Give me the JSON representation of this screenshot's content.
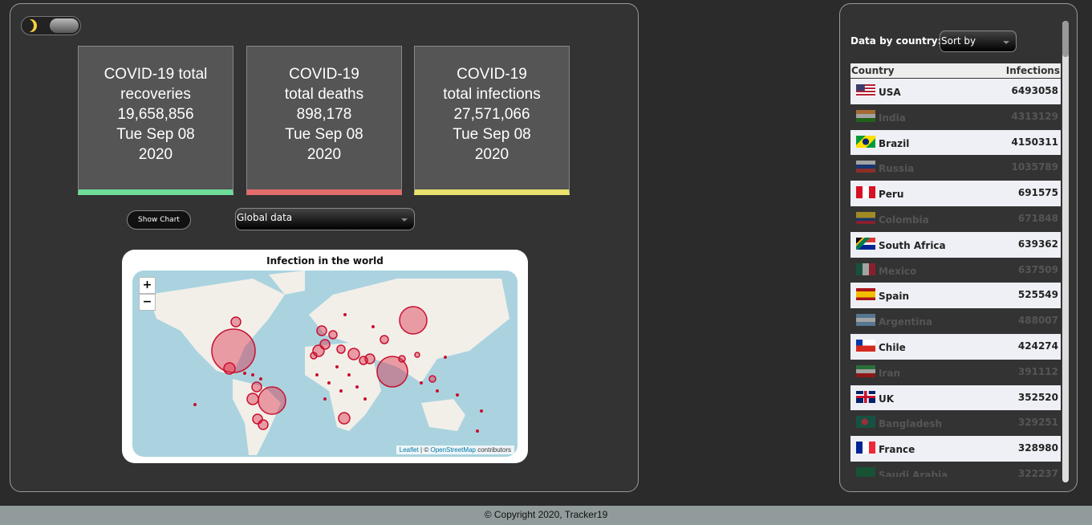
{
  "cards": [
    {
      "title": "COVID-19 total recoveries",
      "value": "19,658,856",
      "date": "Tue Sep 08 2020"
    },
    {
      "title": "COVID-19 total deaths",
      "value": "898,178",
      "date": "Tue Sep 08 2020"
    },
    {
      "title": "COVID-19 total infections",
      "value": "27,571,066",
      "date": "Tue Sep 08 2020"
    }
  ],
  "controls": {
    "button": "Show Chart",
    "select": "Global data"
  },
  "map": {
    "title": "Infection in the world",
    "zoom_in": "+",
    "zoom_out": "−",
    "attribution": {
      "leaflet": "Leaflet",
      "separator": "| ©",
      "osm": "OpenStreetMap",
      "suffix": "contributors"
    }
  },
  "sidebar": {
    "label": "Data by country:",
    "sort": "Sort by",
    "table": {
      "headers": [
        "Country",
        "Infections"
      ],
      "rows": [
        [
          "USA",
          6493058
        ],
        [
          "India",
          4313129
        ],
        [
          "Brazil",
          4150311
        ],
        [
          "Russia",
          1035789
        ],
        [
          "Peru",
          691575
        ],
        [
          "Colombia",
          671848
        ],
        [
          "South Africa",
          639362
        ],
        [
          "Mexico",
          637509
        ],
        [
          "Spain",
          525549
        ],
        [
          "Argentina",
          488007
        ],
        [
          "Chile",
          424274
        ],
        [
          "Iran",
          391112
        ],
        [
          "UK",
          352520
        ],
        [
          "Bangladesh",
          329251
        ],
        [
          "France",
          328980
        ],
        [
          "Saudi Arabia",
          322237
        ]
      ]
    }
  },
  "footer": "© Copyright 2020, Tracker19"
}
